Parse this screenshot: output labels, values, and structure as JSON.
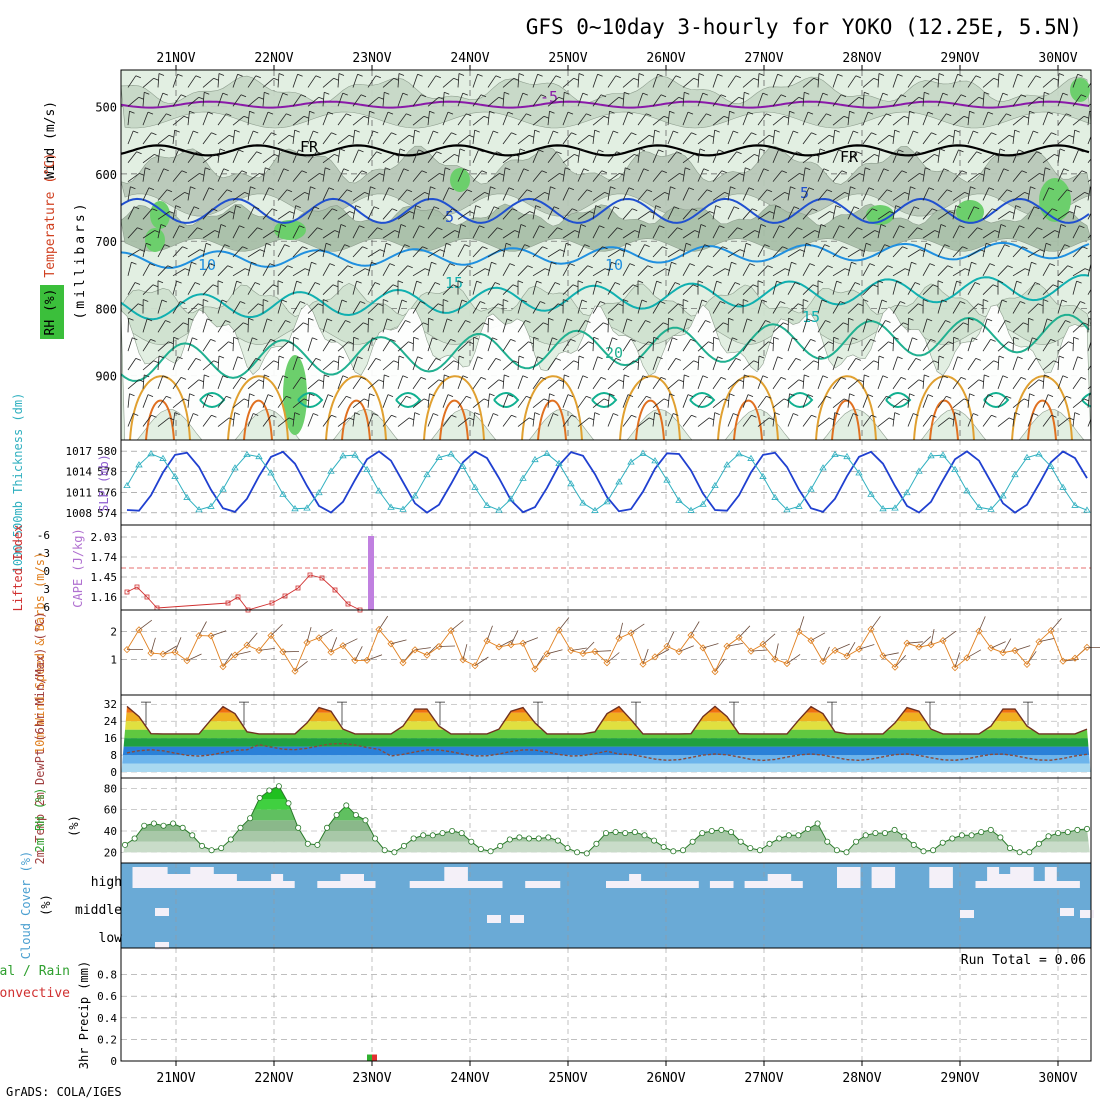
{
  "title": "GFS 0~10day 3-hourly for YOKO (12.25E, 5.5N)",
  "credit": "GrADS: COLA/IGES",
  "dates": [
    "21NOV",
    "22NOV",
    "23NOV",
    "24NOV",
    "25NOV",
    "26NOV",
    "27NOV",
    "28NOV",
    "29NOV",
    "30NOV"
  ],
  "chart_data": [
    {
      "type": "contour",
      "panel": "upper_air",
      "ylabel": "(millibars)",
      "ylim": [
        1000,
        450
      ],
      "yticks": [
        500,
        600,
        700,
        800,
        900
      ],
      "legend": [
        "Wind (m/s)",
        "Temperature (°C)",
        "RH (%)"
      ],
      "temperature_contour_labels": [
        "-5",
        "5",
        "10",
        "15",
        "20"
      ],
      "rh_contour_labels": [
        "30",
        "50",
        "70",
        "90"
      ],
      "freezing_label": "FR"
    },
    {
      "type": "line",
      "panel": "thickness_slp",
      "ylabel_left": "1000-500mb Thickness (dm)",
      "ylabel_right": "SLP (mb)",
      "yticks_left": [
        "580",
        "578",
        "576",
        "574"
      ],
      "yticks_right": [
        "1017",
        "1014",
        "1011",
        "1008"
      ]
    },
    {
      "type": "line",
      "panel": "stability",
      "ylabel_left": "Lifted Index",
      "ylabel_right": "CAPE (J/kg)",
      "yticks_left": [
        "-6",
        "-3",
        "0",
        "3",
        "6"
      ],
      "yticks_right": [
        "2.03",
        "1.74",
        "1.45",
        "1.16"
      ],
      "cape_spike": {
        "date": "23NOV",
        "value": 2.03
      }
    },
    {
      "type": "line",
      "panel": "wind10m",
      "ylabel": "10m Wind Speed & Barbs (m/s)",
      "yticks": [
        "2",
        "1"
      ],
      "ylim": [
        0,
        2.6
      ]
    },
    {
      "type": "area",
      "panel": "temp2m",
      "ylabel": "2m Temp 2m DewPt (6hr Min/Max) (°C)",
      "yticks": [
        "32",
        "24",
        "16",
        "8",
        "0"
      ],
      "ylim": [
        0,
        34
      ]
    },
    {
      "type": "area",
      "panel": "rh2m",
      "ylabel": "2m RH (%)",
      "yticks": [
        "80",
        "60",
        "40",
        "20"
      ],
      "ylim": [
        10,
        85
      ],
      "values": [
        27,
        33,
        45,
        47,
        45,
        47,
        43,
        36,
        26,
        22,
        24,
        32,
        43,
        52,
        71,
        78,
        82,
        66,
        43,
        28,
        27,
        43,
        55,
        64,
        55,
        50,
        33,
        22,
        20,
        26,
        33,
        36,
        36,
        38,
        40,
        38,
        30,
        23,
        21,
        26,
        32,
        34,
        33,
        33,
        34,
        31,
        24,
        20,
        19,
        28,
        38,
        39,
        38,
        39,
        36,
        31,
        25,
        21,
        22,
        30,
        38,
        40,
        41,
        39,
        30,
        24,
        22,
        28,
        33,
        36,
        36,
        42,
        47,
        30,
        22,
        20,
        30,
        36,
        38,
        38,
        41,
        35,
        27,
        21,
        22,
        29,
        33,
        36,
        36,
        39,
        41,
        34,
        24,
        20,
        20,
        28,
        35,
        38,
        39,
        41,
        42
      ]
    },
    {
      "type": "bar",
      "panel": "cloud_cover",
      "ylabel": "Cloud Cover (%)",
      "levels": [
        "high",
        "middle",
        "low"
      ]
    },
    {
      "type": "bar",
      "panel": "precip",
      "ylabel": "3hr Precip (mm)",
      "legend": [
        "Total / Rain",
        "Convective"
      ],
      "yticks": [
        "0.8",
        "0.6",
        "0.4",
        "0.2",
        "0"
      ],
      "ylim": [
        0,
        1
      ],
      "run_total_label": "Run Total = 0.06",
      "bar": {
        "date": "23NOV",
        "value": 0.06
      }
    }
  ]
}
